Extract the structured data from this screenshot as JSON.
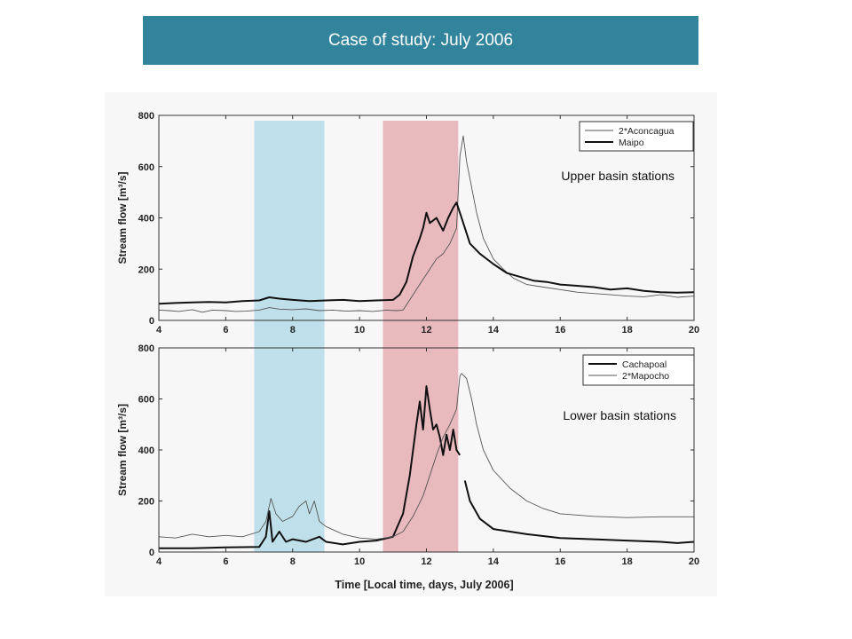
{
  "slide": {
    "title": "Case of study: July 2006",
    "colors": {
      "title_bar": "#31849b",
      "band_1": "#bfe0ea",
      "band_2": "#e8b9bd",
      "figure_bg": "#f7f7f7"
    }
  },
  "chart_data": [
    {
      "type": "line",
      "ylabel": "Stream flow [m³/s]",
      "xlabel": "",
      "annotation": "Upper basin stations",
      "xlim": [
        4,
        20
      ],
      "ylim": [
        0,
        800
      ],
      "xticks": [
        4,
        6,
        8,
        10,
        12,
        14,
        16,
        18,
        20
      ],
      "yticks": [
        0,
        200,
        400,
        600,
        800
      ],
      "grid": false,
      "legend_position": "top-right",
      "shaded_bands": [
        {
          "x": [
            6.85,
            8.95
          ],
          "color": "#bfe0ea"
        },
        {
          "x": [
            10.7,
            12.95
          ],
          "color": "#e8b9bd"
        }
      ],
      "series": [
        {
          "name": "2*Aconcagua",
          "style": "thin",
          "color": "#555555",
          "x": [
            4,
            4.3,
            4.6,
            5,
            5.3,
            5.6,
            6,
            6.3,
            6.6,
            7,
            7.3,
            7.6,
            8,
            8.4,
            8.8,
            9.2,
            9.6,
            10,
            10.4,
            10.8,
            11.1,
            11.3,
            11.5,
            11.7,
            11.9,
            12.1,
            12.3,
            12.5,
            12.7,
            12.9,
            13.0,
            13.1,
            13.2,
            13.35,
            13.5,
            13.7,
            14,
            14.3,
            14.6,
            15,
            15.5,
            16,
            16.5,
            17,
            17.5,
            18,
            18.5,
            19,
            19.5,
            20
          ],
          "y": [
            40,
            38,
            35,
            42,
            32,
            40,
            38,
            35,
            36,
            40,
            50,
            44,
            42,
            45,
            38,
            40,
            36,
            38,
            35,
            40,
            38,
            40,
            80,
            120,
            160,
            200,
            240,
            260,
            300,
            360,
            640,
            720,
            620,
            520,
            420,
            320,
            240,
            200,
            165,
            140,
            130,
            120,
            110,
            105,
            100,
            95,
            92,
            100,
            90,
            95
          ]
        },
        {
          "name": "Maipo",
          "style": "thick",
          "color": "#111111",
          "x": [
            4,
            4.5,
            5,
            5.5,
            6,
            6.5,
            7,
            7.3,
            7.6,
            8,
            8.5,
            9,
            9.5,
            10,
            10.5,
            11,
            11.2,
            11.4,
            11.6,
            11.8,
            11.9,
            12,
            12.1,
            12.3,
            12.5,
            12.65,
            12.8,
            12.9,
            13.0,
            13.1,
            13.3,
            13.6,
            14,
            14.4,
            14.8,
            15.2,
            15.6,
            16,
            16.5,
            17,
            17.5,
            18,
            18.5,
            19,
            19.5,
            20
          ],
          "y": [
            65,
            68,
            70,
            72,
            70,
            75,
            78,
            90,
            85,
            80,
            75,
            78,
            80,
            75,
            78,
            80,
            100,
            150,
            250,
            320,
            360,
            420,
            380,
            400,
            350,
            400,
            440,
            460,
            420,
            380,
            300,
            260,
            220,
            185,
            170,
            155,
            150,
            140,
            135,
            130,
            120,
            125,
            115,
            110,
            108,
            110
          ]
        }
      ]
    },
    {
      "type": "line",
      "ylabel": "Stream flow [m³/s]",
      "xlabel": "Time [Local time, days, July 2006]",
      "annotation": "Lower basin stations",
      "xlim": [
        4,
        20
      ],
      "ylim": [
        0,
        800
      ],
      "xticks": [
        4,
        6,
        8,
        10,
        12,
        14,
        16,
        18,
        20
      ],
      "yticks": [
        0,
        200,
        400,
        600,
        800
      ],
      "grid": false,
      "legend_position": "top-right",
      "shaded_bands": [
        {
          "x": [
            6.85,
            8.95
          ],
          "color": "#bfe0ea"
        },
        {
          "x": [
            10.7,
            12.95
          ],
          "color": "#e8b9bd"
        }
      ],
      "series": [
        {
          "name": "Cachapoal",
          "style": "thick",
          "color": "#111111",
          "x": [
            4,
            5,
            6,
            7,
            7.2,
            7.3,
            7.4,
            7.6,
            7.8,
            8,
            8.4,
            8.8,
            9,
            9.5,
            10,
            10.5,
            11,
            11.3,
            11.5,
            11.7,
            11.8,
            11.9,
            12,
            12.1,
            12.2,
            12.3,
            12.4,
            12.5,
            12.6,
            12.7,
            12.8,
            12.9,
            13.0,
            13.1,
            13.15,
            13.3,
            13.6,
            14,
            15,
            16,
            17,
            18,
            19,
            19.5,
            20
          ],
          "y": [
            15,
            15,
            18,
            20,
            60,
            160,
            40,
            80,
            40,
            50,
            40,
            60,
            40,
            30,
            40,
            45,
            60,
            150,
            300,
            500,
            590,
            480,
            650,
            560,
            480,
            500,
            450,
            380,
            460,
            400,
            480,
            400,
            380,
            null,
            280,
            200,
            130,
            90,
            70,
            55,
            50,
            45,
            40,
            35,
            40
          ]
        },
        {
          "name": "2*Mapocho",
          "style": "thin",
          "color": "#555555",
          "x": [
            4,
            4.5,
            5,
            5.5,
            6,
            6.5,
            7,
            7.2,
            7.35,
            7.5,
            7.7,
            8,
            8.2,
            8.4,
            8.5,
            8.65,
            8.8,
            9,
            9.5,
            10,
            10.5,
            11,
            11.3,
            11.6,
            11.9,
            12.1,
            12.3,
            12.5,
            12.7,
            12.9,
            13.0,
            13.05,
            13.2,
            13.35,
            13.5,
            13.7,
            14,
            14.5,
            15,
            15.5,
            16,
            17,
            18,
            19,
            20
          ],
          "y": [
            60,
            55,
            70,
            60,
            65,
            60,
            80,
            120,
            210,
            150,
            120,
            140,
            180,
            200,
            150,
            200,
            120,
            100,
            70,
            55,
            50,
            60,
            80,
            140,
            220,
            300,
            380,
            450,
            500,
            560,
            690,
            700,
            680,
            600,
            500,
            400,
            320,
            250,
            200,
            170,
            150,
            140,
            135,
            138,
            138
          ]
        }
      ]
    }
  ]
}
